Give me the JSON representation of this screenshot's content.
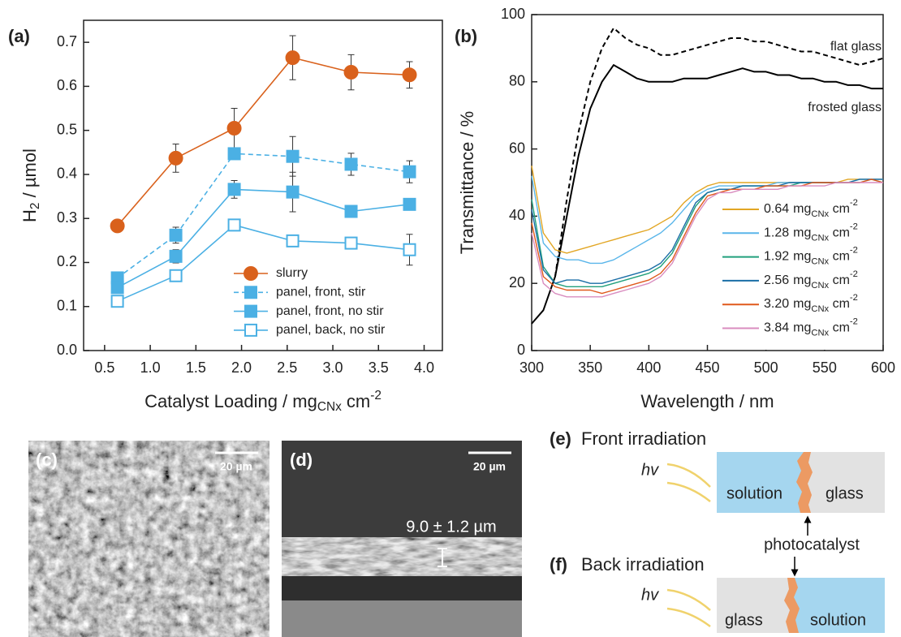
{
  "chart_data": [
    {
      "type": "line",
      "label": "(a)",
      "x_label": {
        "text": "Catalyst Loading / mg",
        "sub": "CNx",
        "tail": " cm",
        "sup": "-2"
      },
      "y_label": {
        "text": "H",
        "sub": "2",
        "tail": " / µmol"
      },
      "x": [
        0.64,
        1.28,
        1.92,
        2.56,
        3.2,
        3.84
      ],
      "xlim": [
        0.27,
        4.2
      ],
      "xticks": [
        0.5,
        {
          "value": 1,
          "label": "1.0"
        },
        1.5,
        {
          "value": 2,
          "label": "2.0"
        },
        2.5,
        {
          "value": 3,
          "label": "3.0"
        },
        3.5,
        {
          "value": 4,
          "label": "4.0"
        }
      ],
      "ylim": [
        0,
        0.75
      ],
      "yticks": [
        {
          "value": 0,
          "label": "0.0"
        },
        0.1,
        0.2,
        0.3,
        0.4,
        0.5,
        0.6,
        0.7
      ],
      "series": [
        {
          "name": "slurry",
          "color": "#d9611c",
          "marker": "circle",
          "filled": true,
          "dashed": false,
          "values": [
            0.283,
            0.437,
            0.505,
            0.665,
            0.632,
            0.626
          ],
          "errors": [
            0.01,
            0.032,
            0.045,
            0.05,
            0.04,
            0.03
          ]
        },
        {
          "name": "panel, front, stir",
          "color": "#4bb0e4",
          "marker": "square",
          "filled": true,
          "dashed": true,
          "values": [
            0.165,
            0.262,
            0.447,
            0.441,
            0.423,
            0.406
          ],
          "errors": [
            0.01,
            0.018,
            0.01,
            0.045,
            0.025,
            0.025
          ]
        },
        {
          "name": "panel, front, no stir",
          "color": "#4bb0e4",
          "marker": "square",
          "filled": true,
          "dashed": false,
          "values": [
            0.143,
            0.214,
            0.366,
            0.36,
            0.316,
            0.332
          ],
          "errors": [
            0.01,
            0.015,
            0.02,
            0.045,
            0.01,
            0.01
          ]
        },
        {
          "name": "panel, back, no stir",
          "color": "#4bb0e4",
          "marker": "square",
          "filled": false,
          "dashed": false,
          "values": [
            0.112,
            0.17,
            0.285,
            0.249,
            0.244,
            0.229
          ],
          "errors": [
            0.01,
            0.01,
            0.005,
            0.008,
            0.008,
            0.035
          ]
        }
      ]
    },
    {
      "type": "line",
      "label": "(b)",
      "x_label": "Wavelength / nm",
      "y_label": "Transmittance / %",
      "x": [
        300,
        310,
        320,
        330,
        340,
        350,
        360,
        370,
        380,
        390,
        400,
        410,
        420,
        430,
        440,
        450,
        460,
        470,
        480,
        490,
        500,
        510,
        520,
        530,
        540,
        550,
        560,
        570,
        580,
        590,
        600
      ],
      "xlim": [
        300,
        600
      ],
      "xticks": [
        300,
        350,
        400,
        450,
        500,
        550,
        600
      ],
      "ylim": [
        0,
        100
      ],
      "yticks": [
        0,
        20,
        40,
        60,
        80,
        100
      ],
      "annotated_series": [
        {
          "name": "flat glass",
          "color": "#000000",
          "dashed": true,
          "values": [
            null,
            null,
            22,
            45,
            65,
            80,
            90,
            96,
            93,
            91,
            90,
            88,
            88,
            89,
            90,
            91,
            92,
            93,
            93,
            92,
            92,
            91,
            90,
            89,
            89,
            88,
            87,
            86,
            85,
            86,
            87
          ]
        },
        {
          "name": "frosted glass",
          "color": "#000000",
          "dashed": false,
          "values": [
            8,
            12,
            22,
            40,
            58,
            72,
            80,
            85,
            83,
            81,
            80,
            80,
            80,
            81,
            81,
            81,
            82,
            83,
            84,
            83,
            83,
            82,
            82,
            81,
            81,
            80,
            80,
            79,
            79,
            78,
            78
          ]
        }
      ],
      "legend_unit": {
        "text": "mg",
        "sub": "CNx",
        "tail": " cm",
        "sup": "-2"
      },
      "series": [
        {
          "name": "0.64",
          "color": "#e2a624",
          "values": [
            55,
            35,
            30,
            29,
            30,
            31,
            32,
            33,
            34,
            35,
            36,
            38,
            40,
            44,
            47,
            49,
            50,
            50,
            50,
            50,
            50,
            50,
            50,
            50,
            50,
            50,
            50,
            51,
            51,
            51,
            51
          ]
        },
        {
          "name": "1.28",
          "color": "#5ab6ea",
          "values": [
            52,
            32,
            28,
            27,
            27,
            26,
            26,
            27,
            29,
            31,
            33,
            35,
            38,
            42,
            46,
            48,
            49,
            49,
            49,
            49,
            49,
            50,
            50,
            50,
            50,
            50,
            50,
            50,
            51,
            51,
            51
          ]
        },
        {
          "name": "1.92",
          "color": "#22a07c",
          "values": [
            45,
            25,
            20,
            19,
            19,
            19,
            19,
            20,
            21,
            22,
            23,
            25,
            29,
            36,
            43,
            47,
            48,
            48,
            49,
            49,
            49,
            49,
            49,
            50,
            50,
            50,
            50,
            50,
            50,
            51,
            50
          ]
        },
        {
          "name": "2.56",
          "color": "#1a6ea6",
          "values": [
            42,
            24,
            20,
            21,
            21,
            20,
            20,
            21,
            22,
            23,
            24,
            26,
            30,
            37,
            44,
            47,
            48,
            48,
            49,
            49,
            49,
            49,
            50,
            50,
            50,
            50,
            50,
            50,
            51,
            51,
            51
          ]
        },
        {
          "name": "3.20",
          "color": "#e0591c",
          "values": [
            38,
            22,
            19,
            18,
            18,
            18,
            17,
            18,
            19,
            20,
            21,
            23,
            27,
            34,
            41,
            46,
            47,
            48,
            48,
            48,
            49,
            49,
            49,
            49,
            50,
            50,
            50,
            50,
            50,
            51,
            50
          ]
        },
        {
          "name": "3.84",
          "color": "#d98cbf",
          "values": [
            35,
            20,
            17,
            16,
            16,
            16,
            16,
            17,
            18,
            19,
            20,
            22,
            26,
            33,
            40,
            45,
            47,
            47,
            48,
            48,
            48,
            48,
            49,
            49,
            49,
            49,
            50,
            50,
            50,
            50,
            50
          ]
        }
      ]
    }
  ],
  "images": [
    {
      "label": "(c)",
      "scale_bar": "20 µm"
    },
    {
      "label": "(d)",
      "scale_bar": "20 µm",
      "annotation": "9.0 ± 1.2 µm"
    }
  ],
  "diagrams": [
    {
      "label": "(e)",
      "title": "Front irradiation",
      "light": "hv",
      "left": "solution",
      "right": "glass"
    },
    {
      "label": "(f)",
      "title": "Back irradiation",
      "light": "hv",
      "left": "glass",
      "right": "solution"
    }
  ],
  "shared_label": "photocatalyst"
}
